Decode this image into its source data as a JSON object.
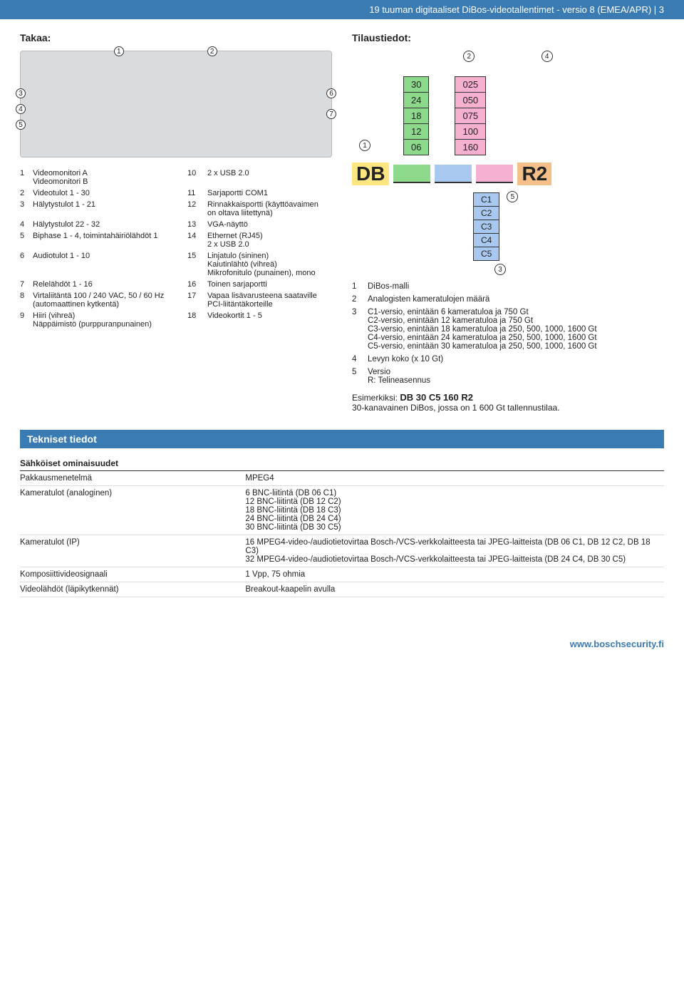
{
  "header": {
    "title": "19 tuuman digitaaliset DiBos-videotallentimet - versio 8 (EMEA/APR) | 3"
  },
  "rear": {
    "heading": "Takaa:",
    "rows": [
      [
        "1",
        "Videomonitori A\nVideomonitori B",
        "10",
        "2 x USB 2.0"
      ],
      [
        "2",
        "Videotulot 1 - 30",
        "11",
        "Sarjaportti COM1"
      ],
      [
        "3",
        "Hälytystulot 1 - 21",
        "12",
        "Rinnakkaisportti (käyttöavaimen on oltava liitettynä)"
      ],
      [
        "4",
        "Hälytystulot 22 - 32",
        "13",
        "VGA-näyttö"
      ],
      [
        "5",
        "Biphase 1 - 4, toimintahäiriölähdöt 1",
        "14",
        "Ethernet (RJ45)\n2 x USB 2.0"
      ],
      [
        "6",
        "Audiotulot 1 - 10",
        "15",
        "Linjatulo (sininen)\nKaiutinlähtö (vihreä)\nMikrofonitulo (punainen), mono"
      ],
      [
        "7",
        "Relelähdöt 1 - 16",
        "16",
        "Toinen sarjaportti"
      ],
      [
        "8",
        "Virtaliitäntä 100 / 240 VAC, 50 / 60 Hz (automaattinen kytkentä)",
        "17",
        "Vapaa lisävarusteena saataville PCI-liitäntäkorteille"
      ],
      [
        "9",
        "Hiiri (vihreä)\nNäppäimistö (purppuranpunainen)",
        "18",
        "Videokortit 1 - 5"
      ]
    ]
  },
  "order": {
    "heading": "Tilaustiedot:",
    "col1": {
      "values": [
        "30",
        "24",
        "18",
        "12",
        "06"
      ],
      "bg": [
        "#8cd98c",
        "#8cd98c",
        "#8cd98c",
        "#8cd98c",
        "#8cd98c"
      ]
    },
    "col2": {
      "values": [
        "025",
        "050",
        "075",
        "100",
        "160"
      ],
      "bg": [
        "#f5b0d0",
        "#f5b0d0",
        "#f5b0d0",
        "#f5b0d0",
        "#f5b0d0"
      ]
    },
    "c": [
      "C1",
      "C2",
      "C3",
      "C4",
      "C5"
    ],
    "db": "DB",
    "r2": "R2",
    "legend": [
      [
        "1",
        "DiBos-malli"
      ],
      [
        "2",
        "Analogisten kameratulojen määrä"
      ],
      [
        "3",
        "C1-versio, enintään 6 kameratuloa ja 750 Gt\nC2-versio, enintään 12 kameratuloa ja 750 Gt\nC3-versio, enintään 18 kameratuloa ja 250, 500, 1000, 1600 Gt\nC4-versio, enintään 24 kameratuloa ja 250, 500, 1000, 1600 Gt\nC5-versio, enintään 30 kameratuloa ja 250, 500, 1000, 1600 Gt"
      ],
      [
        "4",
        "Levyn koko (x 10 Gt)"
      ],
      [
        "5",
        "Versio\nR: Telineasennus"
      ]
    ],
    "example_label": "Esimerkiksi:",
    "example_code": "DB 30 C5 160 R2",
    "example_text": "30-kanavainen DiBos, jossa on 1 600 Gt tallennustilaa."
  },
  "tech": {
    "heading": "Tekniset tiedot",
    "sub": "Sähköiset ominaisuudet",
    "rows": [
      [
        "Pakkausmenetelmä",
        "MPEG4"
      ],
      [
        "Kameratulot (analoginen)",
        "6 BNC-liitintä (DB 06 C1)\n12 BNC-liitintä (DB 12 C2)\n18 BNC-liitintä (DB 18 C3)\n24 BNC-liitintä (DB 24 C4)\n30 BNC-liitintä (DB 30 C5)"
      ],
      [
        "Kameratulot (IP)",
        "16 MPEG4-video-/audiotietovirtaa Bosch-/VCS-verkkolaitteesta tai JPEG-laitteista (DB 06 C1, DB 12 C2, DB 18 C3)\n32 MPEG4-video-/audiotietovirtaa Bosch-/VCS-verkkolaitteesta tai JPEG-laitteista (DB 24 C4, DB 30 C5)"
      ],
      [
        "Komposiittivideosignaali",
        "1 Vpp, 75 ohmia"
      ],
      [
        "Videolähdöt (läpikytkennät)",
        "Breakout-kaapelin avulla"
      ]
    ]
  },
  "footer": {
    "url": "www.boschsecurity.fi"
  }
}
